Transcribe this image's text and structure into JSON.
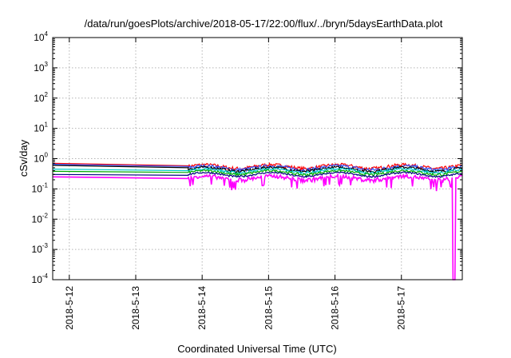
{
  "chart_data": {
    "type": "line",
    "title": "/data/run/goesPlots/archive/2018-05-17/22:00/flux/../bryn/5daysEarthData.plot",
    "xlabel": "Coordinated Universal Time (UTC)",
    "ylabel": "cSv/day",
    "yscale": "log",
    "ylim": [
      0.0001,
      10000
    ],
    "xlim": [
      "2018-05-11 18:00",
      "2018-05-17 22:00"
    ],
    "xticks": [
      "2018-5-12",
      "2018-5-13",
      "2018-5-14",
      "2018-5-15",
      "2018-5-16",
      "2018-5-17"
    ],
    "yticks": [
      {
        "value": 0.0001,
        "base": "10",
        "exp": "-4"
      },
      {
        "value": 0.001,
        "base": "10",
        "exp": "-3"
      },
      {
        "value": 0.01,
        "base": "10",
        "exp": "-2"
      },
      {
        "value": 0.1,
        "base": "10",
        "exp": "-1"
      },
      {
        "value": 1,
        "base": "10",
        "exp": "0"
      },
      {
        "value": 10,
        "base": "10",
        "exp": "1"
      },
      {
        "value": 100,
        "base": "10",
        "exp": "2"
      },
      {
        "value": 1000,
        "base": "10",
        "exp": "3"
      },
      {
        "value": 10000,
        "base": "10",
        "exp": "4"
      }
    ],
    "grid": true,
    "legend": "none",
    "gap": {
      "start": "2018-05-11 18:00",
      "end": "2018-05-13 19:00"
    },
    "dip": {
      "time": "2018-05-17 19:00",
      "value": 0.0001
    },
    "series": [
      {
        "color": "#ff0000",
        "start_value": 0.7,
        "end_value": 0.58,
        "level": 0.55,
        "noise": 0.25
      },
      {
        "color": "#3355ff",
        "start_value": 0.65,
        "end_value": 0.55,
        "level": 0.5,
        "noise": 0.25
      },
      {
        "color": "#000000",
        "start_value": 0.6,
        "end_value": 0.5,
        "level": 0.45,
        "noise": 0.2
      },
      {
        "color": "#00cccc",
        "start_value": 0.45,
        "end_value": 0.4,
        "level": 0.4,
        "noise": 0.18
      },
      {
        "color": "#00aa00",
        "start_value": 0.38,
        "end_value": 0.35,
        "level": 0.35,
        "noise": 0.18
      },
      {
        "color": "#000080",
        "start_value": 0.3,
        "end_value": 0.28,
        "level": 0.3,
        "noise": 0.12
      },
      {
        "color": "#ff00ff",
        "start_value": 0.25,
        "end_value": 0.22,
        "level": 0.23,
        "noise": 0.3
      }
    ]
  }
}
